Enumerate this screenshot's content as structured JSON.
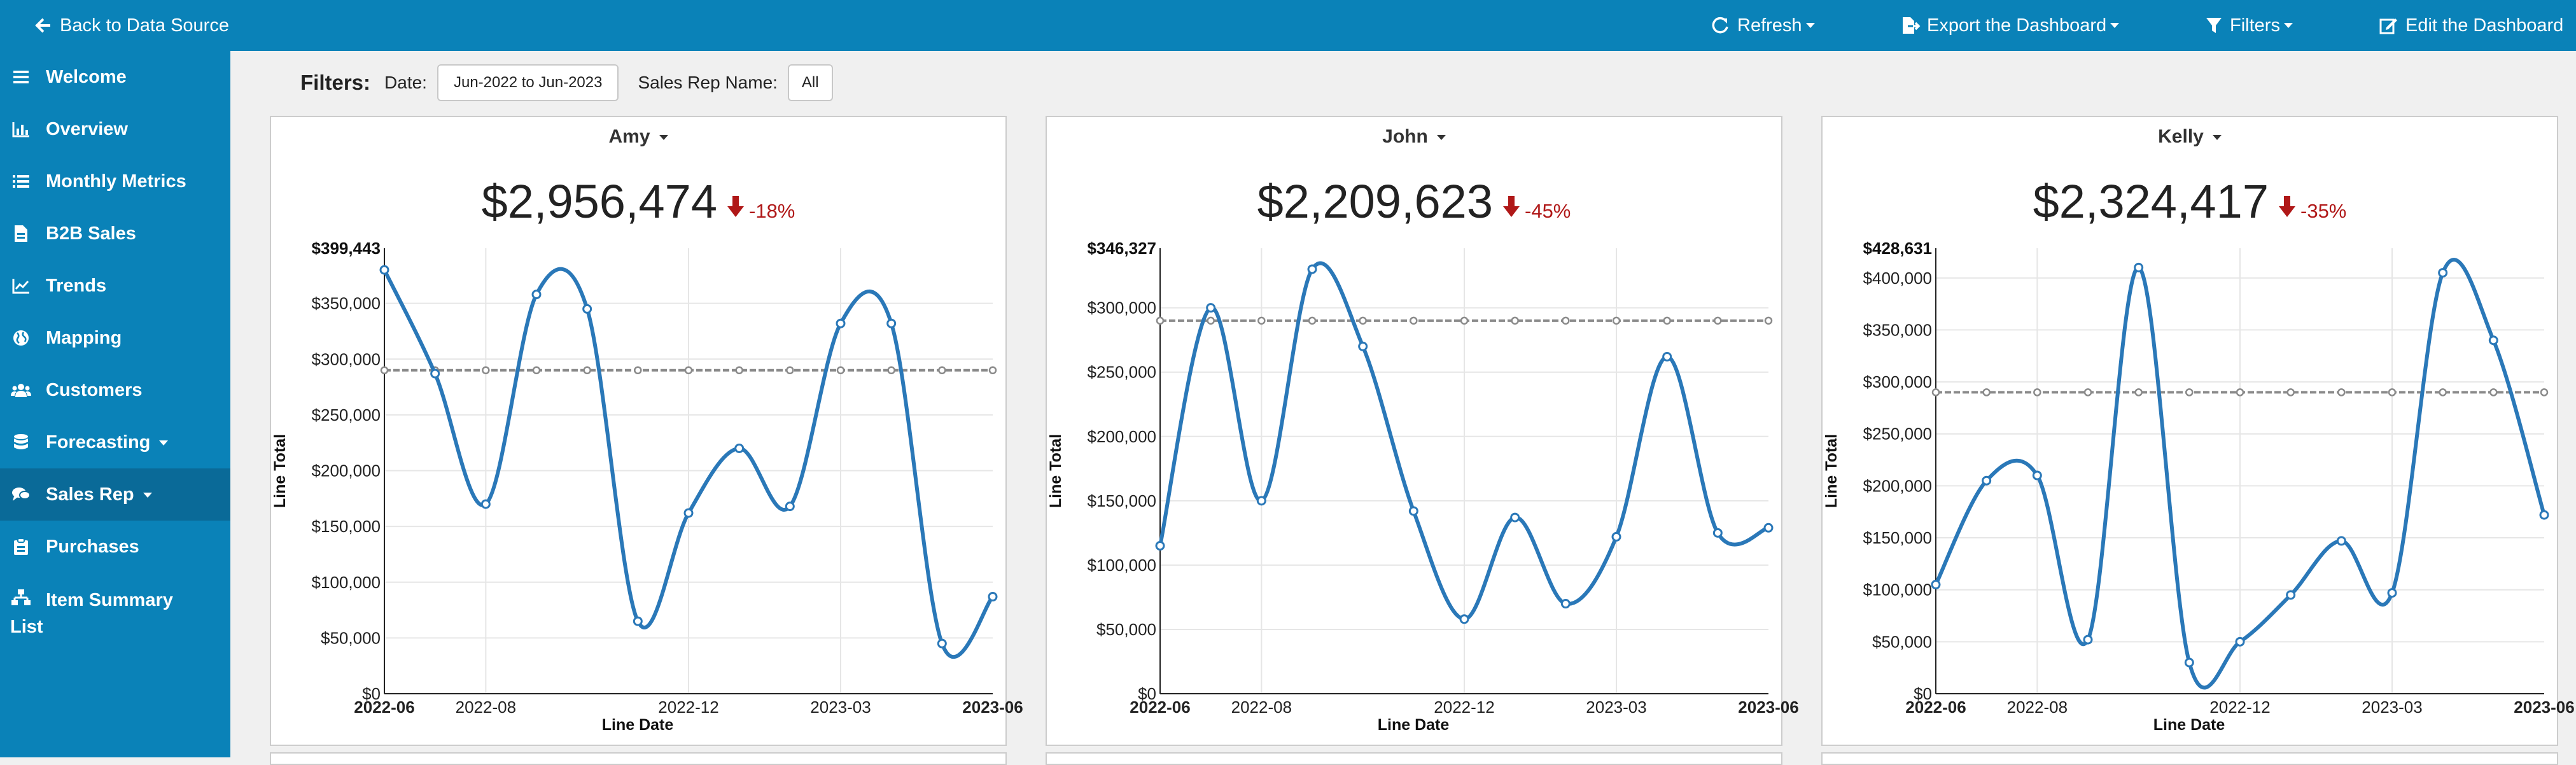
{
  "topbar": {
    "back_label": "Back to Data Source",
    "refresh_label": "Refresh",
    "export_label": "Export the Dashboard",
    "filters_label": "Filters",
    "edit_label": "Edit the Dashboard"
  },
  "sidebar": {
    "items": [
      {
        "label": "Welcome",
        "icon": "menu-icon"
      },
      {
        "label": "Overview",
        "icon": "bar-chart-icon"
      },
      {
        "label": "Monthly Metrics",
        "icon": "list-icon"
      },
      {
        "label": "B2B Sales",
        "icon": "document-icon"
      },
      {
        "label": "Trends",
        "icon": "line-chart-icon"
      },
      {
        "label": "Mapping",
        "icon": "globe-icon"
      },
      {
        "label": "Customers",
        "icon": "users-icon"
      },
      {
        "label": "Forecasting",
        "icon": "database-icon"
      },
      {
        "label": "Sales Rep",
        "icon": "comments-icon"
      },
      {
        "label": "Purchases",
        "icon": "clipboard-icon"
      },
      {
        "label": "Item Summary",
        "label2": "List",
        "icon": "hierarchy-icon"
      }
    ]
  },
  "filters": {
    "title": "Filters:",
    "date_label": "Date:",
    "date_value": "Jun-2022 to Jun-2023",
    "rep_label": "Sales Rep Name:",
    "rep_value": "All"
  },
  "colors": {
    "brand": "#0a82b8",
    "brand_active": "#0a6a98",
    "line": "#2a78b8",
    "avg": "#8a8a8a",
    "negative": "#b01818"
  },
  "panels": [
    {
      "name": "Amy",
      "total": "$2,956,474",
      "change": "-18%",
      "chart_data": {
        "type": "line",
        "x": [
          "2022-06",
          "2022-07",
          "2022-08",
          "2022-09",
          "2022-10",
          "2022-11",
          "2022-12",
          "2023-01",
          "2023-02",
          "2023-03",
          "2023-04",
          "2023-05",
          "2023-06"
        ],
        "xticks": [
          "2022-06",
          "2022-08",
          "2022-12",
          "2023-03",
          "2023-06"
        ],
        "xlabel": "Line Date",
        "ylabel": "Line Total",
        "ymax": 399443,
        "ymax_label": "$399,443",
        "yticks": [
          0,
          50000,
          100000,
          150000,
          200000,
          250000,
          300000,
          350000
        ],
        "ytick_labels": [
          "$0",
          "$50,000",
          "$100,000",
          "$150,000",
          "$200,000",
          "$250,000",
          "$300,000",
          "$350,000"
        ],
        "series": [
          {
            "values": [
              380000,
              287000,
              170000,
              358000,
              345000,
              65000,
              162000,
              220000,
              168000,
              332000,
              332000,
              45000,
              87000
            ]
          }
        ],
        "average": 290000
      }
    },
    {
      "name": "John",
      "total": "$2,209,623",
      "change": "-45%",
      "chart_data": {
        "type": "line",
        "x": [
          "2022-06",
          "2022-07",
          "2022-08",
          "2022-09",
          "2022-10",
          "2022-11",
          "2022-12",
          "2023-01",
          "2023-02",
          "2023-03",
          "2023-04",
          "2023-05",
          "2023-06"
        ],
        "xticks": [
          "2022-06",
          "2022-08",
          "2022-12",
          "2023-03",
          "2023-06"
        ],
        "xlabel": "Line Date",
        "ylabel": "Line Total",
        "ymax": 346327,
        "ymax_label": "$346,327",
        "yticks": [
          0,
          50000,
          100000,
          150000,
          200000,
          250000,
          300000
        ],
        "ytick_labels": [
          "$0",
          "$50,000",
          "$100,000",
          "$150,000",
          "$200,000",
          "$250,000",
          "$300,000"
        ],
        "series": [
          {
            "values": [
              115000,
              300000,
              150000,
              330000,
              270000,
              142000,
              58000,
              137000,
              70000,
              122000,
              262000,
              125000,
              129000
            ]
          }
        ],
        "average": 290000
      }
    },
    {
      "name": "Kelly",
      "total": "$2,324,417",
      "change": "-35%",
      "chart_data": {
        "type": "line",
        "x": [
          "2022-06",
          "2022-07",
          "2022-08",
          "2022-09",
          "2022-10",
          "2022-11",
          "2022-12",
          "2023-01",
          "2023-02",
          "2023-03",
          "2023-04",
          "2023-05",
          "2023-06"
        ],
        "xticks": [
          "2022-06",
          "2022-08",
          "2022-12",
          "2023-03",
          "2023-06"
        ],
        "xlabel": "Line Date",
        "ylabel": "Line Total",
        "ymax": 428631,
        "ymax_label": "$428,631",
        "yticks": [
          0,
          50000,
          100000,
          150000,
          200000,
          250000,
          300000,
          350000,
          400000
        ],
        "ytick_labels": [
          "$0",
          "$50,000",
          "$100,000",
          "$150,000",
          "$200,000",
          "$250,000",
          "$300,000",
          "$350,000",
          "$400,000"
        ],
        "series": [
          {
            "values": [
              105000,
              205000,
              210000,
              52000,
              410000,
              30000,
              50000,
              95000,
              147000,
              97000,
              405000,
              340000,
              172000
            ]
          }
        ],
        "average": 290000
      }
    }
  ]
}
